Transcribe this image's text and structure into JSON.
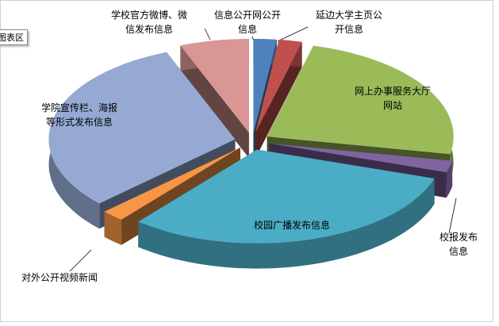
{
  "chart_data": {
    "type": "pie",
    "tooltip": "图表区",
    "categories": [
      "信息公开网公开\n信息",
      "延边大学主页公\n开信息",
      "网上办事服务大厅\n网站",
      "校报发布信息",
      "校园广播发布信息",
      "对外公开视频新闻",
      "学院宣传栏、海报\n等形式发布信息",
      "学校官方微博、微\n信发布信息"
    ],
    "values": [
      2,
      2,
      24,
      2,
      31,
      2,
      31,
      6
    ],
    "colors": [
      "#4f81bd",
      "#c0504d",
      "#9bbb59",
      "#8064a2",
      "#4bacc6",
      "#f79646",
      "#95a9d3",
      "#d99694"
    ]
  }
}
